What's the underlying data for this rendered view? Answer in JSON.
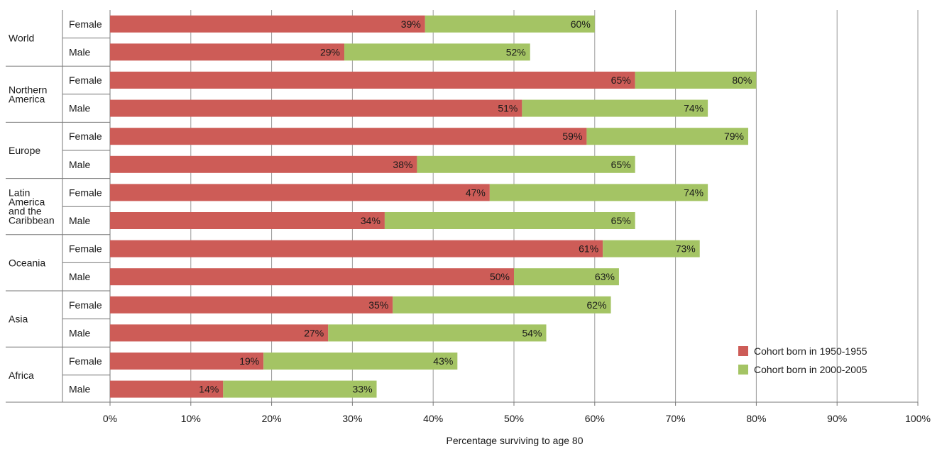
{
  "chart_data": {
    "type": "bar",
    "orientation": "horizontal",
    "stacking": "overlay",
    "xlabel": "Percentage surviving to age 80",
    "xlim": [
      0,
      100
    ],
    "x_ticks": [
      "0%",
      "10%",
      "20%",
      "30%",
      "40%",
      "50%",
      "60%",
      "70%",
      "80%",
      "90%",
      "100%"
    ],
    "grid": "vertical",
    "legend_position": "bottom-right",
    "groups": [
      {
        "region": [
          "World"
        ],
        "rows": [
          {
            "label": "Female",
            "v1950": 39,
            "v2000": 60
          },
          {
            "label": "Male",
            "v1950": 29,
            "v2000": 52
          }
        ]
      },
      {
        "region": [
          "Northern",
          "America"
        ],
        "rows": [
          {
            "label": "Female",
            "v1950": 65,
            "v2000": 80
          },
          {
            "label": "Male",
            "v1950": 51,
            "v2000": 74
          }
        ]
      },
      {
        "region": [
          "Europe"
        ],
        "rows": [
          {
            "label": "Female",
            "v1950": 59,
            "v2000": 79
          },
          {
            "label": "Male",
            "v1950": 38,
            "v2000": 65
          }
        ]
      },
      {
        "region": [
          "Latin",
          "America",
          "and the",
          "Caribbean"
        ],
        "rows": [
          {
            "label": "Female",
            "v1950": 47,
            "v2000": 74
          },
          {
            "label": "Male",
            "v1950": 34,
            "v2000": 65
          }
        ]
      },
      {
        "region": [
          "Oceania"
        ],
        "rows": [
          {
            "label": "Female",
            "v1950": 61,
            "v2000": 73
          },
          {
            "label": "Male",
            "v1950": 50,
            "v2000": 63
          }
        ]
      },
      {
        "region": [
          "Asia"
        ],
        "rows": [
          {
            "label": "Female",
            "v1950": 35,
            "v2000": 62
          },
          {
            "label": "Male",
            "v1950": 27,
            "v2000": 54
          }
        ]
      },
      {
        "region": [
          "Africa"
        ],
        "rows": [
          {
            "label": "Female",
            "v1950": 19,
            "v2000": 43
          },
          {
            "label": "Male",
            "v1950": 14,
            "v2000": 33
          }
        ]
      }
    ],
    "series": [
      {
        "key": "v1950",
        "name": "Cohort born in 1950-1955",
        "color": "#cd5c57"
      },
      {
        "key": "v2000",
        "name": "Cohort born in 2000-2005",
        "color": "#a4c464"
      }
    ]
  }
}
